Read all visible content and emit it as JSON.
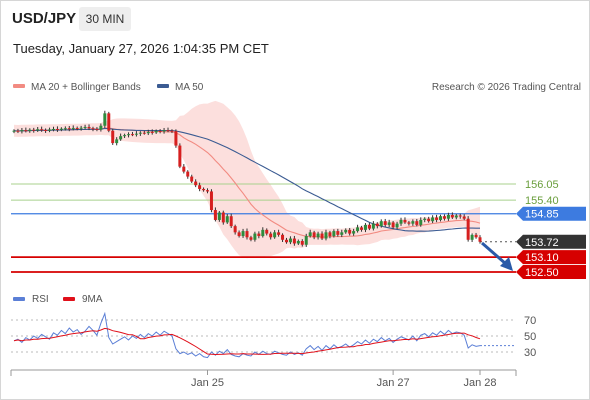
{
  "header": {
    "symbol": "USD/JPY",
    "timeframe": "30 MIN",
    "datetime": "Tuesday, January 27, 2026 1:04:35 PM CET"
  },
  "legend": {
    "items": [
      {
        "label": "MA 20 + Bollinger Bands",
        "color": "#f28b82"
      },
      {
        "label": "MA 50",
        "color": "#3b5b92"
      }
    ],
    "copyright": "Research © 2026 Trading Central"
  },
  "rsi_legend": {
    "items": [
      {
        "label": "RSI",
        "color": "#5b7fd6"
      },
      {
        "label": "9MA",
        "color": "#e0101a"
      }
    ]
  },
  "colors": {
    "bull": "#2e8b3d",
    "bear": "#d61f1f",
    "resistance_light": "#a8d08d",
    "pivot": "#3d7be0",
    "support": "#d60000",
    "current": "#333333"
  },
  "chart_data": [
    {
      "type": "candlestick",
      "ylim": [
        152.3,
        158.0
      ],
      "x_ticks": [
        {
          "label": "Jan 25",
          "index": 49
        },
        {
          "label": "Jan 27",
          "index": 96
        },
        {
          "label": "Jan 28",
          "index": 118
        }
      ],
      "levels": [
        {
          "value": 156.05,
          "label": "156.05",
          "kind": "resistance_light"
        },
        {
          "value": 155.4,
          "label": "155.40",
          "kind": "resistance_light"
        },
        {
          "value": 154.85,
          "label": "154.85",
          "kind": "pivot"
        },
        {
          "value": 153.72,
          "label": "153.72",
          "kind": "current"
        },
        {
          "value": 153.1,
          "label": "153.10",
          "kind": "support"
        },
        {
          "value": 152.5,
          "label": "152.50",
          "kind": "support"
        }
      ],
      "closes": [
        158.2,
        158.18,
        158.22,
        158.19,
        158.24,
        158.21,
        158.26,
        158.23,
        158.2,
        158.25,
        158.27,
        158.24,
        158.28,
        158.3,
        158.27,
        158.31,
        158.29,
        158.32,
        158.35,
        158.3,
        158.27,
        158.24,
        158.4,
        158.9,
        158.2,
        157.7,
        157.85,
        157.98,
        158.02,
        158.06,
        158.04,
        158.08,
        158.12,
        158.1,
        158.15,
        158.13,
        158.19,
        158.17,
        158.22,
        158.2,
        158.18,
        157.6,
        156.75,
        156.55,
        156.35,
        156.15,
        156.0,
        155.85,
        155.8,
        155.75,
        155.0,
        154.6,
        154.9,
        154.5,
        154.75,
        154.35,
        154.1,
        153.95,
        154.15,
        153.9,
        153.8,
        154.05,
        153.95,
        154.2,
        154.05,
        153.9,
        154.1,
        154.0,
        153.8,
        153.7,
        153.85,
        153.65,
        153.75,
        153.6,
        153.95,
        154.1,
        153.9,
        154.05,
        153.85,
        154.1,
        153.95,
        154.15,
        154.0,
        154.1,
        154.2,
        154.05,
        154.15,
        154.3,
        154.2,
        154.4,
        154.25,
        154.45,
        154.35,
        154.55,
        154.4,
        154.5,
        154.3,
        154.45,
        154.6,
        154.5,
        154.45,
        154.55,
        154.4,
        154.6,
        154.65,
        154.55,
        154.7,
        154.6,
        154.75,
        154.65,
        154.8,
        154.7,
        154.78,
        154.74,
        154.65,
        153.8,
        154.0,
        153.9,
        153.72
      ],
      "rsi": {
        "ylim": [
          20,
          80
        ],
        "ticks": [
          70,
          50,
          30
        ],
        "values": [
          44,
          46,
          42,
          48,
          45,
          50,
          47,
          52,
          49,
          46,
          54,
          51,
          57,
          53,
          60,
          55,
          58,
          52,
          56,
          62,
          57,
          51,
          66,
          78,
          48,
          40,
          43,
          46,
          49,
          45,
          50,
          47,
          52,
          48,
          53,
          50,
          55,
          51,
          56,
          53,
          50,
          34,
          28,
          30,
          27,
          29,
          25,
          28,
          24,
          23,
          30,
          26,
          31,
          28,
          33,
          27,
          25,
          24,
          28,
          26,
          25,
          30,
          27,
          31,
          28,
          27,
          31,
          29,
          27,
          26,
          30,
          27,
          29,
          26,
          34,
          38,
          33,
          37,
          32,
          38,
          34,
          39,
          35,
          37,
          40,
          36,
          39,
          43,
          40,
          45,
          41,
          46,
          43,
          48,
          44,
          47,
          42,
          46,
          49,
          47,
          45,
          50,
          44,
          51,
          53,
          49,
          54,
          51,
          56,
          52,
          57,
          53,
          55,
          54,
          51,
          35,
          39,
          37,
          38
        ]
      }
    }
  ]
}
